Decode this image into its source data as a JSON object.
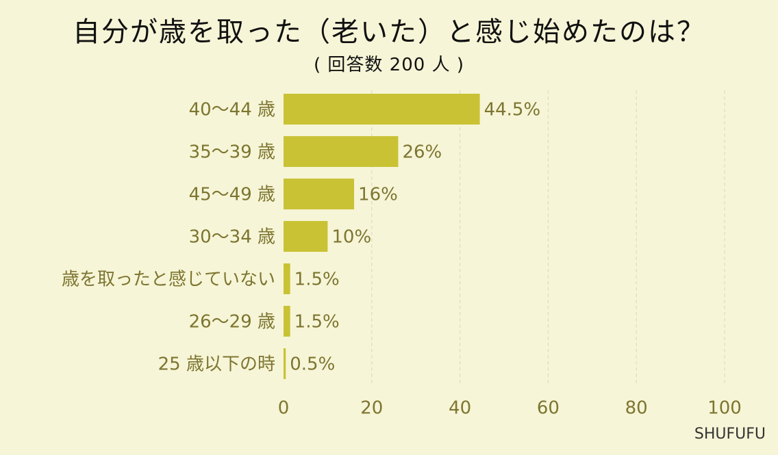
{
  "header": {
    "title": "自分が歳を取った（老いた）と感じ始めたのは？",
    "subtitle": "( 回答数 200 人 )"
  },
  "brand": "SHUFUFU",
  "colors": {
    "background": "#f6f5d7",
    "bar": "#c9c234",
    "label": "#7d7530",
    "grid": "#d9d6c0"
  },
  "chart_data": {
    "type": "bar",
    "orientation": "horizontal",
    "categories": [
      "40～44 歳",
      "35～39 歳",
      "45～49 歳",
      "30～34 歳",
      "歳を取ったと感じていない",
      "26～29 歳",
      "25 歳以下の時"
    ],
    "values": [
      44.5,
      26,
      16,
      10,
      1.5,
      1.5,
      0.5
    ],
    "value_labels": [
      "44.5%",
      "26%",
      "16%",
      "10%",
      "1.5%",
      "1.5%",
      "0.5%"
    ],
    "xlim": [
      0,
      100
    ],
    "xticks": [
      "0",
      "20",
      "40",
      "60",
      "80",
      "100"
    ],
    "grid": "vertical dashed"
  }
}
